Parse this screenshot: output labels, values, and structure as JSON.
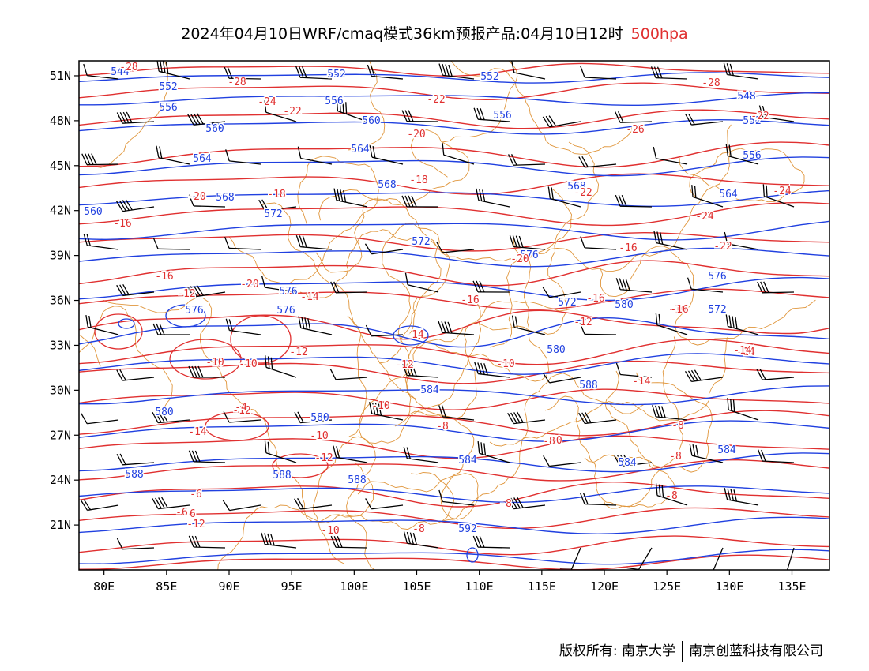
{
  "title": {
    "main": "2024年04月10日WRF/cmaq模式36km预报产品:04月10日12时",
    "level": "500hpa"
  },
  "map": {
    "lon_range": [
      78,
      138
    ],
    "lat_range": [
      18,
      52
    ],
    "lon_ticks": [
      80,
      85,
      90,
      95,
      100,
      105,
      110,
      115,
      120,
      125,
      130,
      135
    ],
    "lat_ticks": [
      21,
      24,
      27,
      30,
      33,
      36,
      39,
      42,
      45,
      48,
      51
    ],
    "lon_labels": [
      "80E",
      "85E",
      "90E",
      "95E",
      "100E",
      "105E",
      "110E",
      "115E",
      "120E",
      "125E",
      "130E",
      "135E"
    ],
    "lat_labels": [
      "21N",
      "24N",
      "27N",
      "30N",
      "33N",
      "36N",
      "39N",
      "42N",
      "45N",
      "48N",
      "51N"
    ],
    "colors": {
      "height": "#2040e0",
      "temperature": "#e03030",
      "border": "#e0963c",
      "wind": "#000000"
    }
  },
  "height_labels": [
    "544",
    "552",
    "552",
    "552",
    "556",
    "556",
    "556",
    "560",
    "560",
    "552",
    "548",
    "564",
    "564",
    "556",
    "568",
    "568",
    "568",
    "564",
    "572",
    "572",
    "576",
    "572",
    "576",
    "576",
    "576",
    "576",
    "572",
    "580",
    "580",
    "580",
    "580",
    "584",
    "588",
    "588",
    "588",
    "588",
    "584",
    "584",
    "592",
    "584",
    "560"
  ],
  "temp_labels": [
    "-28",
    "-28",
    "-28",
    "-24",
    "-22",
    "-22",
    "-22",
    "-26",
    "-24",
    "-20",
    "-20",
    "-18",
    "-18",
    "-22",
    "-24",
    "-16",
    "-16",
    "-20",
    "-22",
    "-16",
    "-20",
    "-14",
    "-16",
    "-16",
    "-14",
    "-16",
    "-12",
    "-12",
    "-14",
    "-12",
    "-10",
    "-10",
    "-12",
    "-10",
    "-10",
    "-14",
    "-12",
    "-10",
    "-14",
    "-12",
    "-8",
    "-10",
    "-8",
    "-8",
    "-8",
    "-6",
    "-6",
    "-12",
    "-10",
    "-8",
    "-8",
    "-6",
    "-4",
    "-16",
    "-14",
    "-8"
  ],
  "credits": {
    "left": "版权所有: 南京大学",
    "right": "南京创蓝科技有限公司"
  }
}
